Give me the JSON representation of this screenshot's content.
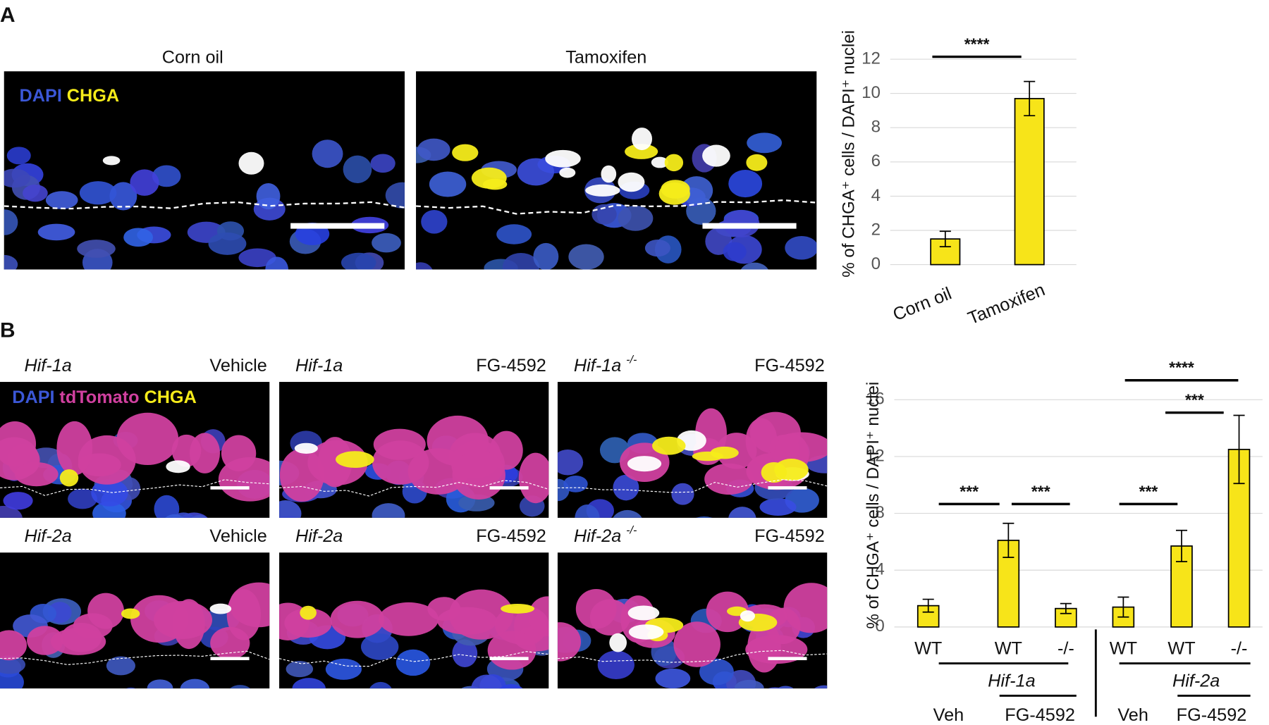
{
  "panel_labels": [
    "A",
    "B"
  ],
  "panel_a": {
    "stains": [
      "DAPI",
      "CHGA"
    ],
    "images": [
      {
        "label": "Corn oil"
      },
      {
        "label": "Tamoxifen"
      }
    ]
  },
  "panel_b": {
    "stains": [
      "DAPI",
      "tdTomato",
      "CHGA"
    ],
    "images": [
      {
        "gene": "Hif-1a",
        "treatment": "Vehicle"
      },
      {
        "gene": "Hif-1a",
        "treatment": "FG-4592"
      },
      {
        "gene": "Hif-1a",
        "genotype": "-/-",
        "treatment": "FG-4592"
      },
      {
        "gene": "Hif-2a",
        "treatment": "Vehicle"
      },
      {
        "gene": "Hif-2a",
        "treatment": "FG-4592"
      },
      {
        "gene": "Hif-2a",
        "genotype": "-/-",
        "treatment": "FG-4592"
      }
    ]
  },
  "chart_data": [
    {
      "type": "bar",
      "ylabel": "% of CHGA⁺ cells / DAPI⁺ nuclei",
      "categories": [
        "Corn oil",
        "Tamoxifen"
      ],
      "values": [
        1.5,
        9.7
      ],
      "errors": [
        0.45,
        1.0
      ],
      "color": "#f7e419",
      "ylim": [
        0,
        12
      ],
      "yticks": [
        0,
        2,
        4,
        6,
        8,
        10,
        12
      ],
      "grid": true,
      "annotations": [
        "****"
      ]
    },
    {
      "type": "bar",
      "ylabel": "% of CHGA⁺ cells / DAPI⁺ nuclei",
      "categories": [
        "WT",
        "WT",
        "-/-",
        "WT",
        "WT",
        "-/-"
      ],
      "values": [
        1.5,
        6.1,
        1.3,
        1.4,
        5.7,
        12.5
      ],
      "errors": [
        0.45,
        1.2,
        0.35,
        0.7,
        1.1,
        2.4
      ],
      "color": "#f7e419",
      "ylim": [
        0,
        16
      ],
      "yticks": [
        0,
        4,
        8,
        12,
        16
      ],
      "grid": true,
      "annotations": [
        "***",
        "***",
        "***",
        "***",
        "****"
      ],
      "groups": [
        "Hif-1a",
        "Hif-2a"
      ],
      "treatments": [
        "Veh",
        "FG-4592",
        "Veh",
        "FG-4592"
      ]
    }
  ]
}
